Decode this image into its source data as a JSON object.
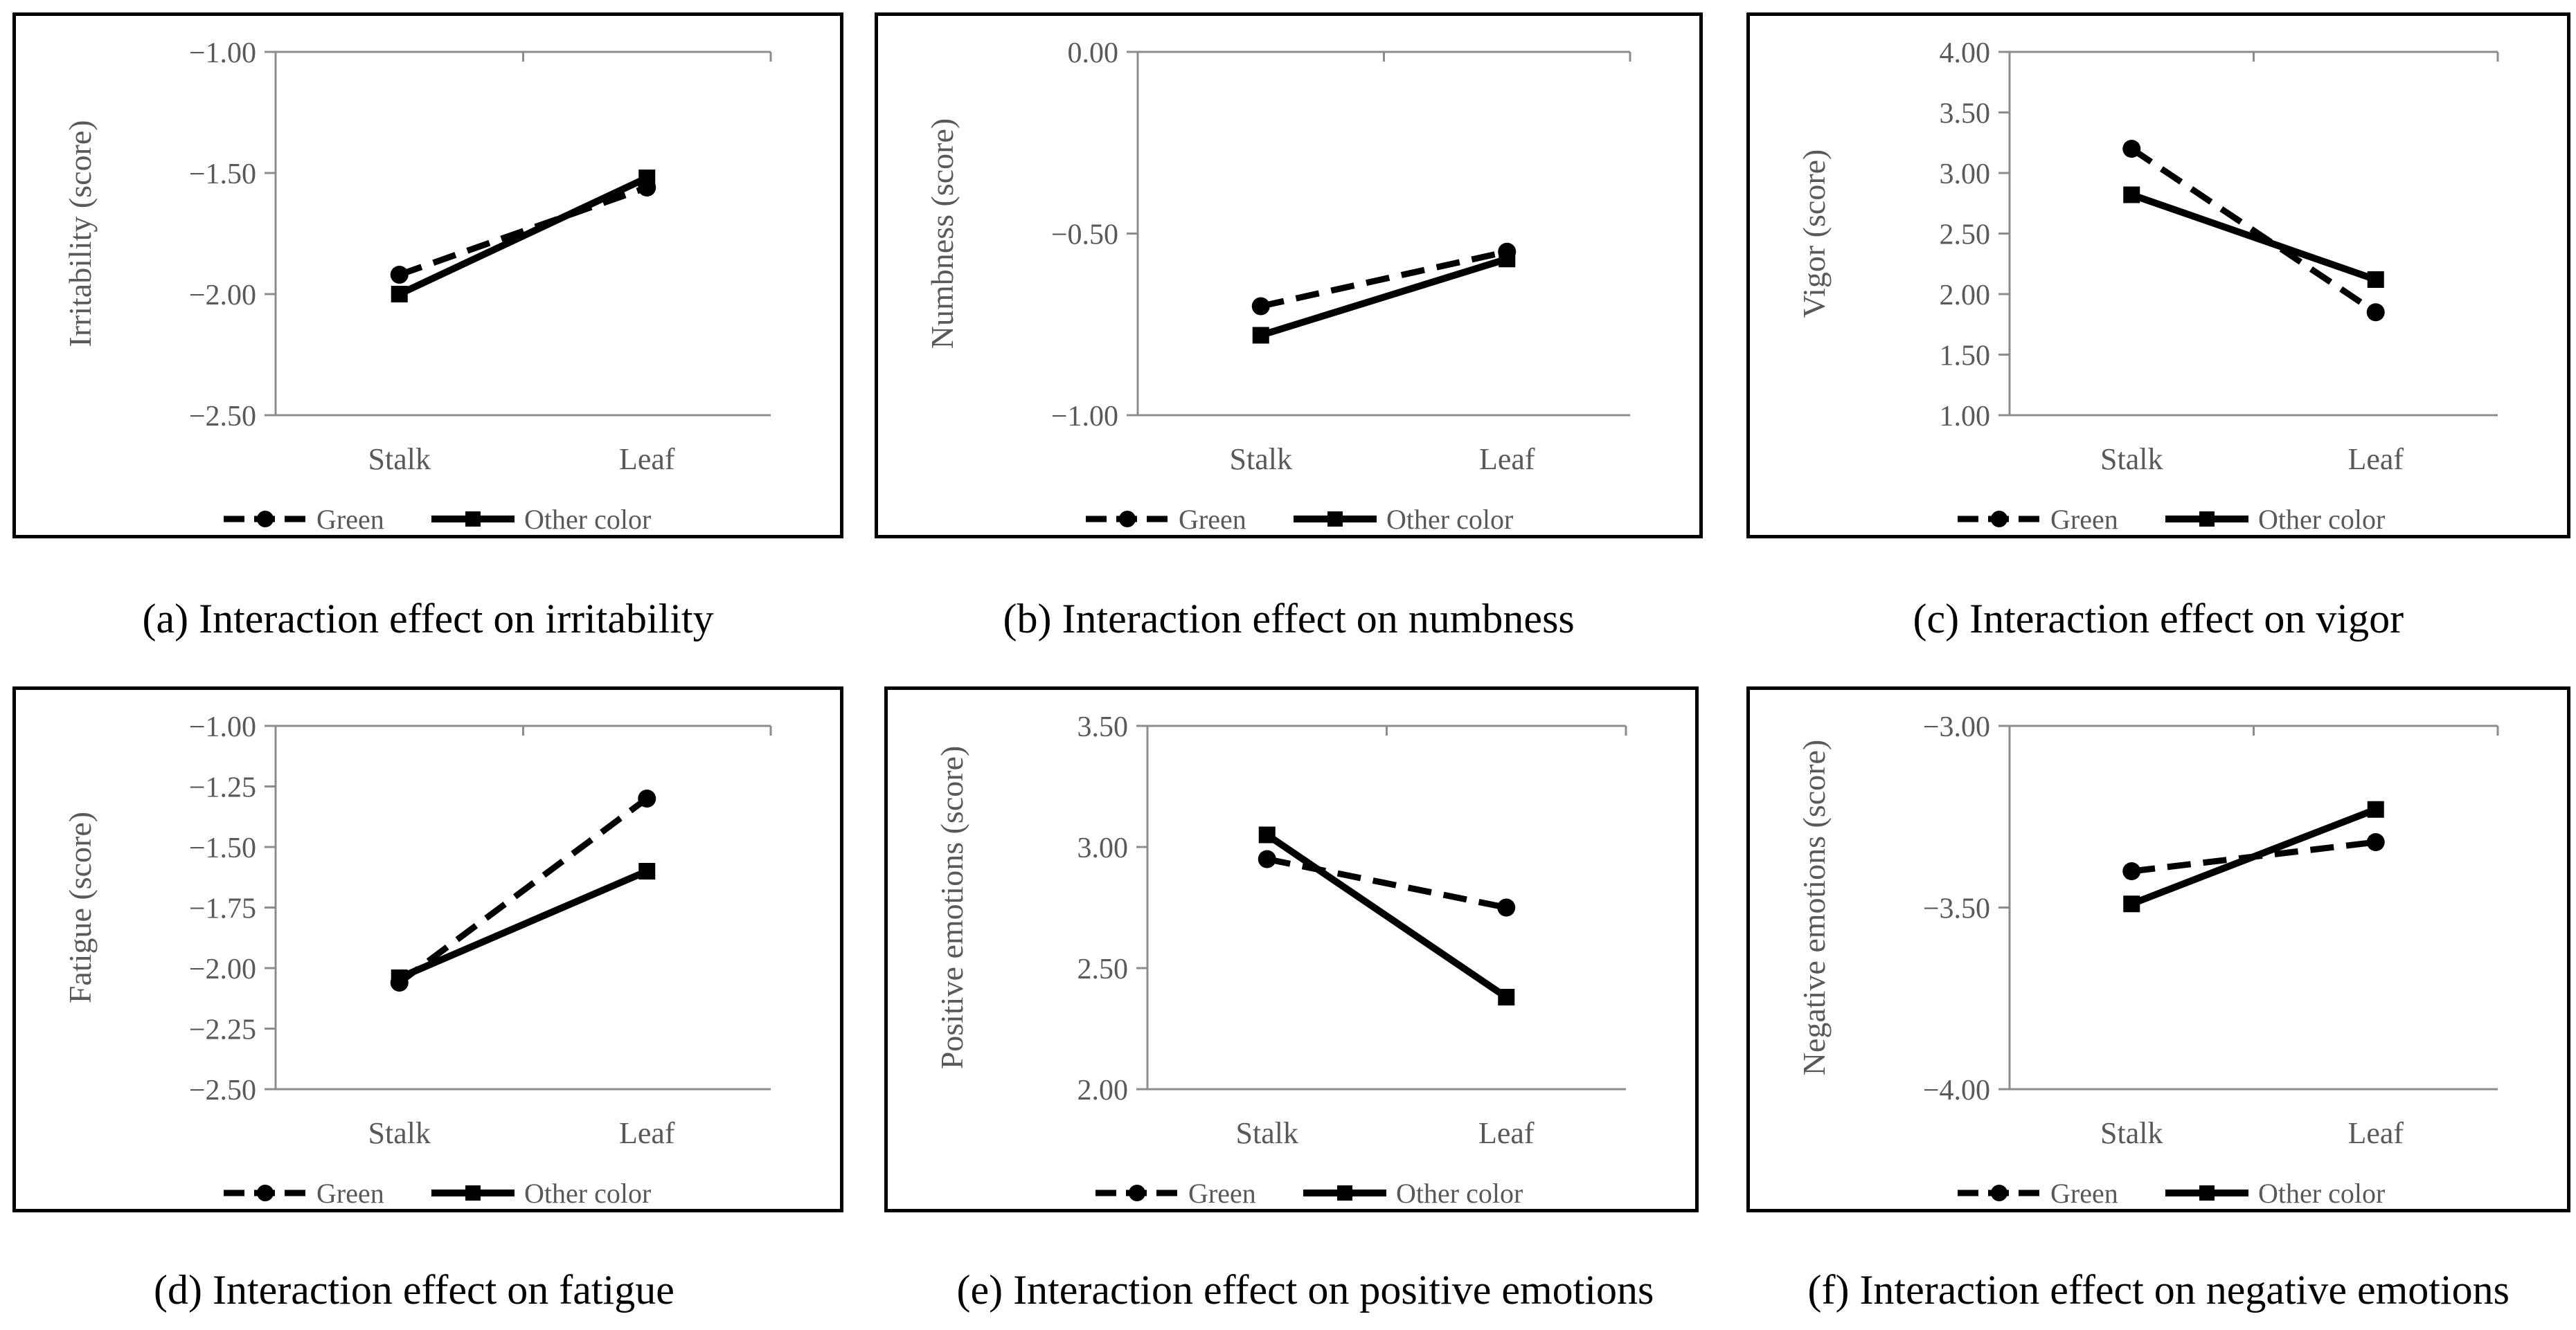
{
  "styles": {
    "line_color": "#000000",
    "axis_color": "#8c8c8c",
    "tick_text_color": "#595959"
  },
  "series_defs": [
    {
      "name": "Green",
      "dash": "dashed",
      "marker": "circle"
    },
    {
      "name": "Other color",
      "dash": "solid",
      "marker": "square"
    }
  ],
  "chart_data": [
    {
      "type": "line",
      "ylabel": "Irritability (score)",
      "caption": "(a) Interaction effect on irritability",
      "categories": [
        "Stalk",
        "Leaf"
      ],
      "ylim": [
        -2.5,
        -1.0
      ],
      "yticks": [
        "−2.50",
        "−2.00",
        "−1.50",
        "−1.00"
      ],
      "series": [
        {
          "name": "Green",
          "values": [
            -1.92,
            -1.56
          ]
        },
        {
          "name": "Other color",
          "values": [
            -2.0,
            -1.52
          ]
        }
      ]
    },
    {
      "type": "line",
      "ylabel": "Numbness (score)",
      "caption": "(b) Interaction effect on numbness",
      "categories": [
        "Stalk",
        "Leaf"
      ],
      "ylim": [
        -1.0,
        0.0
      ],
      "yticks": [
        "−1.00",
        "−0.50",
        "0.00"
      ],
      "series": [
        {
          "name": "Green",
          "values": [
            -0.7,
            -0.55
          ]
        },
        {
          "name": "Other color",
          "values": [
            -0.78,
            -0.57
          ]
        }
      ]
    },
    {
      "type": "line",
      "ylabel": "Vigor (score)",
      "caption": "(c) Interaction effect on vigor",
      "categories": [
        "Stalk",
        "Leaf"
      ],
      "ylim": [
        1.0,
        4.0
      ],
      "yticks": [
        "1.00",
        "1.50",
        "2.00",
        "2.50",
        "3.00",
        "3.50",
        "4.00"
      ],
      "series": [
        {
          "name": "Green",
          "values": [
            3.2,
            1.85
          ]
        },
        {
          "name": "Other color",
          "values": [
            2.82,
            2.12
          ]
        }
      ]
    },
    {
      "type": "line",
      "ylabel": "Fatigue (score)",
      "caption": "(d) Interaction effect on fatigue",
      "categories": [
        "Stalk",
        "Leaf"
      ],
      "ylim": [
        -2.5,
        -1.0
      ],
      "yticks": [
        "−2.50",
        "−2.25",
        "−2.00",
        "−1.75",
        "−1.50",
        "−1.25",
        "−1.00"
      ],
      "series": [
        {
          "name": "Green",
          "values": [
            -2.06,
            -1.3
          ]
        },
        {
          "name": "Other color",
          "values": [
            -2.04,
            -1.6
          ]
        }
      ]
    },
    {
      "type": "line",
      "ylabel": "Positive  emotions (score)",
      "caption": "(e) Interaction effect on positive emotions",
      "categories": [
        "Stalk",
        "Leaf"
      ],
      "ylim": [
        2.0,
        3.5
      ],
      "yticks": [
        "2.00",
        "2.50",
        "3.00",
        "3.50"
      ],
      "series": [
        {
          "name": "Green",
          "values": [
            2.95,
            2.75
          ]
        },
        {
          "name": "Other color",
          "values": [
            3.05,
            2.38
          ]
        }
      ]
    },
    {
      "type": "line",
      "ylabel": "Negative emotions (score)",
      "caption": "(f) Interaction effect on negative emotions",
      "categories": [
        "Stalk",
        "Leaf"
      ],
      "ylim": [
        -4.0,
        -3.0
      ],
      "yticks": [
        "−4.00",
        "−3.50",
        "−3.00"
      ],
      "series": [
        {
          "name": "Green",
          "values": [
            -3.4,
            -3.32
          ]
        },
        {
          "name": "Other color",
          "values": [
            -3.49,
            -3.23
          ]
        }
      ]
    }
  ]
}
